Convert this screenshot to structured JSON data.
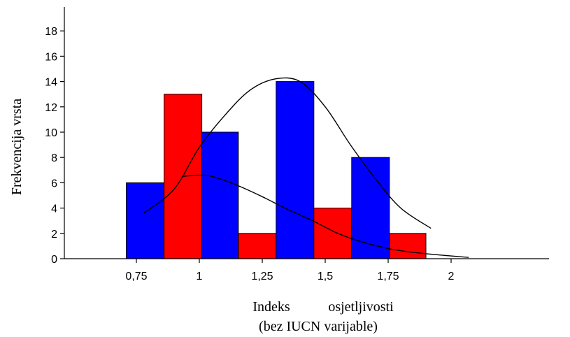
{
  "chart_data": {
    "type": "bar",
    "xlabel_line1_word1": "Indeks",
    "xlabel_line1_word2": "osjetljivosti",
    "xlabel_line2": "(bez IUCN varijable)",
    "ylabel": "Frekvencija vrsta",
    "xlim": [
      0.62,
      2.2
    ],
    "ylim": [
      0,
      19
    ],
    "x_ticks": [
      {
        "value": 0.75,
        "label": "0,75"
      },
      {
        "value": 1.0,
        "label": "1"
      },
      {
        "value": 1.25,
        "label": "1,25"
      },
      {
        "value": 1.5,
        "label": "1,5"
      },
      {
        "value": 1.75,
        "label": "1,75"
      },
      {
        "value": 2.0,
        "label": "2"
      }
    ],
    "y_ticks": [
      {
        "value": 0,
        "label": "0"
      },
      {
        "value": 2,
        "label": "2"
      },
      {
        "value": 4,
        "label": "4"
      },
      {
        "value": 6,
        "label": "6"
      },
      {
        "value": 8,
        "label": "8"
      },
      {
        "value": 10,
        "label": "10"
      },
      {
        "value": 12,
        "label": "12"
      },
      {
        "value": 14,
        "label": "14"
      },
      {
        "value": 16,
        "label": "16"
      },
      {
        "value": 18,
        "label": "18"
      }
    ],
    "bars": [
      {
        "x0": 0.71,
        "x1": 0.86,
        "value": 6,
        "color": "#0000ff"
      },
      {
        "x0": 0.86,
        "x1": 1.01,
        "value": 13,
        "color": "#ff0000"
      },
      {
        "x0": 1.01,
        "x1": 1.155,
        "value": 10,
        "color": "#0000ff"
      },
      {
        "x0": 1.155,
        "x1": 1.305,
        "value": 2,
        "color": "#ff0000"
      },
      {
        "x0": 1.305,
        "x1": 1.455,
        "value": 14,
        "color": "#0000ff"
      },
      {
        "x0": 1.455,
        "x1": 1.605,
        "value": 4,
        "color": "#ff0000"
      },
      {
        "x0": 1.605,
        "x1": 1.755,
        "value": 8,
        "color": "#0000ff"
      },
      {
        "x0": 1.755,
        "x1": 1.9,
        "value": 2,
        "color": "#ff0000"
      }
    ],
    "curves": [
      {
        "points": [
          [
            0.78,
            3.6
          ],
          [
            0.9,
            5.5
          ],
          [
            1.0,
            8.8
          ],
          [
            1.1,
            11.3
          ],
          [
            1.2,
            13.3
          ],
          [
            1.3,
            14.2
          ],
          [
            1.4,
            14.0
          ],
          [
            1.5,
            12.0
          ],
          [
            1.6,
            9.0
          ],
          [
            1.7,
            6.3
          ],
          [
            1.8,
            4.0
          ],
          [
            1.92,
            2.4
          ]
        ]
      },
      {
        "points": [
          [
            0.93,
            6.5
          ],
          [
            1.0,
            6.6
          ],
          [
            1.05,
            6.5
          ],
          [
            1.15,
            5.8
          ],
          [
            1.25,
            4.9
          ],
          [
            1.35,
            3.9
          ],
          [
            1.45,
            3.0
          ],
          [
            1.55,
            2.0
          ],
          [
            1.65,
            1.3
          ],
          [
            1.75,
            0.8
          ],
          [
            1.85,
            0.5
          ],
          [
            1.95,
            0.3
          ],
          [
            2.07,
            0.1
          ]
        ]
      }
    ]
  }
}
